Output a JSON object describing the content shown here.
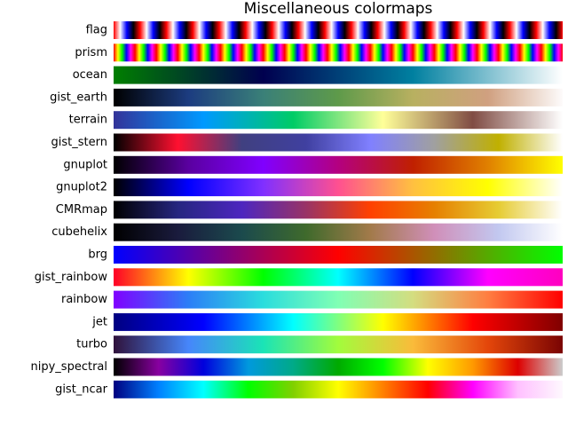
{
  "chart_data": {
    "type": "colormaps",
    "title": "Miscellaneous colormaps",
    "colormaps": [
      {
        "name": "flag",
        "colors": [
          "#ff0000",
          "#ffffff",
          "#0000ff",
          "#000000",
          "#ff0000"
        ],
        "repeat": 17
      },
      {
        "name": "prism",
        "colors": [
          "#ff0000",
          "#ffff00",
          "#00ff00",
          "#0000ff",
          "#ff00ff",
          "#ff0000"
        ],
        "repeat": 21
      },
      {
        "name": "ocean",
        "colors": [
          "#007f00",
          "#00004f",
          "#0080a0",
          "#ffffff"
        ]
      },
      {
        "name": "gist_earth",
        "colors": [
          "#000000",
          "#1c3c80",
          "#3a8078",
          "#5e9a4a",
          "#b8b060",
          "#d0a080",
          "#fdfbfb"
        ]
      },
      {
        "name": "terrain",
        "colors": [
          "#333399",
          "#0099ff",
          "#00cc66",
          "#ffff99",
          "#804c44",
          "#ffffff"
        ]
      },
      {
        "name": "gist_stern",
        "colors": [
          "#000000",
          "#ff1030",
          "#404080",
          "#4040a0",
          "#8080ff",
          "#a0a0a0",
          "#c0b000",
          "#ffffff"
        ]
      },
      {
        "name": "gnuplot",
        "colors": [
          "#000000",
          "#5a00a0",
          "#8000ff",
          "#b40080",
          "#c02000",
          "#e08000",
          "#ffff00"
        ]
      },
      {
        "name": "gnuplot2",
        "colors": [
          "#000000",
          "#0000ff",
          "#8030ff",
          "#ff5090",
          "#ffc040",
          "#ffff00",
          "#ffffff"
        ]
      },
      {
        "name": "CMRmap",
        "colors": [
          "#000000",
          "#262680",
          "#4d26bf",
          "#993366",
          "#ff4000",
          "#e68000",
          "#e6cc33",
          "#ffffff"
        ]
      },
      {
        "name": "cubehelix",
        "colors": [
          "#000000",
          "#1a1b3d",
          "#1b4a4d",
          "#3f6a2c",
          "#a27a4a",
          "#d08fb9",
          "#c2c8f0",
          "#ffffff"
        ]
      },
      {
        "name": "brg",
        "colors": [
          "#0000ff",
          "#ff0000",
          "#00ff00"
        ]
      },
      {
        "name": "gist_rainbow",
        "colors": [
          "#ff0028",
          "#ffff00",
          "#00ff00",
          "#00ffff",
          "#0000ff",
          "#ff00ff",
          "#ff00bf"
        ]
      },
      {
        "name": "rainbow",
        "colors": [
          "#8000ff",
          "#2c7ef7",
          "#2adddd",
          "#80ffb4",
          "#d4dd80",
          "#ff7e41",
          "#ff0000"
        ]
      },
      {
        "name": "jet",
        "colors": [
          "#000080",
          "#0000ff",
          "#00ffff",
          "#ffff00",
          "#ff0000",
          "#800000"
        ]
      },
      {
        "name": "turbo",
        "colors": [
          "#30123b",
          "#4686fb",
          "#1ae4b6",
          "#a2fc3c",
          "#fabb3a",
          "#e4460a",
          "#7a0403"
        ]
      },
      {
        "name": "nipy_spectral",
        "colors": [
          "#000000",
          "#8800a0",
          "#0000dd",
          "#0099dd",
          "#00aa88",
          "#00aa00",
          "#00ff00",
          "#ffff00",
          "#ff9900",
          "#dd0000",
          "#cccccc"
        ]
      },
      {
        "name": "gist_ncar",
        "colors": [
          "#000080",
          "#0080ff",
          "#00ffff",
          "#00ff00",
          "#80d000",
          "#ffff00",
          "#ff8000",
          "#ff0000",
          "#ff00ff",
          "#ffc0ff",
          "#fef8fe"
        ]
      }
    ]
  }
}
